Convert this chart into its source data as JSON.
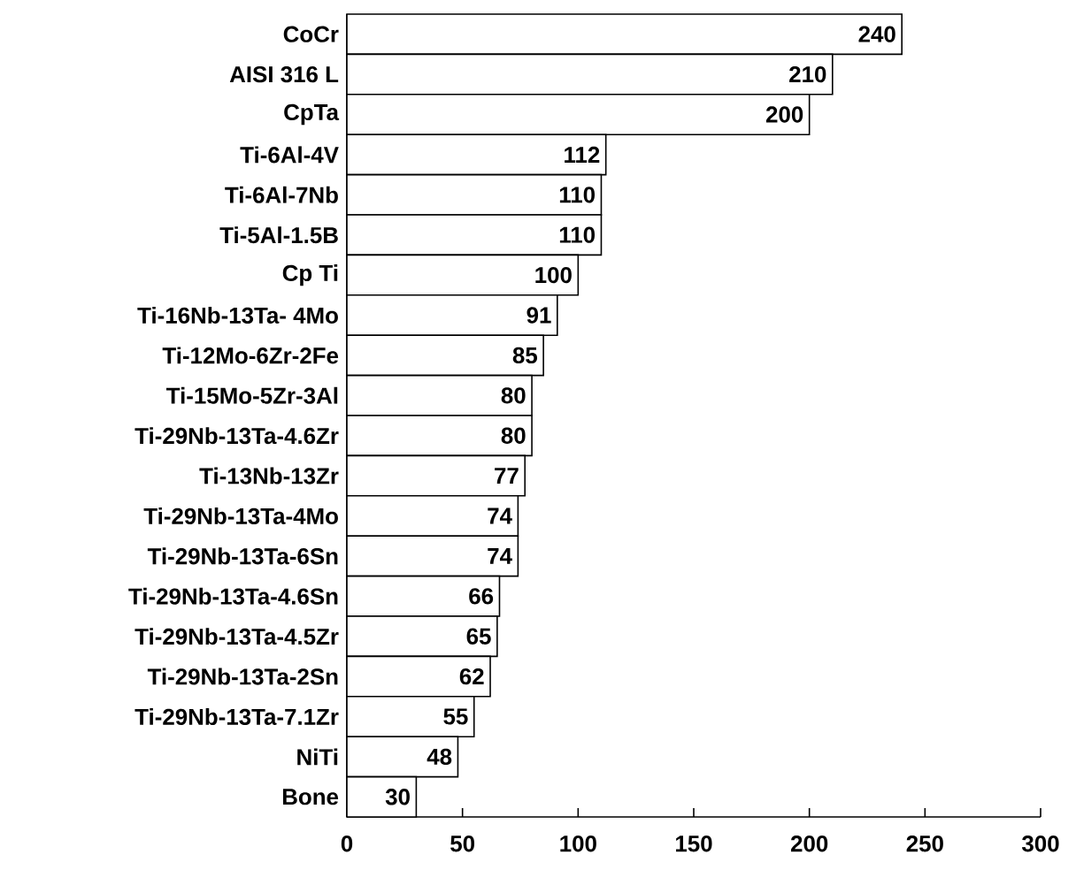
{
  "chart_data": {
    "type": "bar",
    "orientation": "horizontal",
    "color": "#ffffff",
    "categories": [
      "CoCr",
      "AISI 316 L",
      "CpTa",
      "Ti-6Al-4V",
      "Ti-6Al-7Nb",
      "Ti-5Al-1.5B",
      "Cp Ti",
      "Ti-16Nb-13Ta- 4Mo",
      "Ti-12Mo-6Zr-2Fe",
      "Ti-15Mo-5Zr-3Al",
      "Ti-29Nb-13Ta-4.6Zr",
      "Ti-13Nb-13Zr",
      "Ti-29Nb-13Ta-4Mo",
      "Ti-29Nb-13Ta-6Sn",
      "Ti-29Nb-13Ta-4.6Sn",
      "Ti-29Nb-13Ta-4.5Zr",
      "Ti-29Nb-13Ta-2Sn",
      "Ti-29Nb-13Ta-7.1Zr",
      "NiTi",
      "Bone"
    ],
    "values": [
      240,
      210,
      200,
      112,
      110,
      110,
      100,
      91,
      85,
      80,
      80,
      77,
      74,
      74,
      66,
      65,
      62,
      55,
      48,
      30
    ],
    "data_labels": true,
    "xlim": [
      0,
      300
    ],
    "xticks": [
      0,
      50,
      100,
      150,
      200,
      250,
      300
    ]
  }
}
